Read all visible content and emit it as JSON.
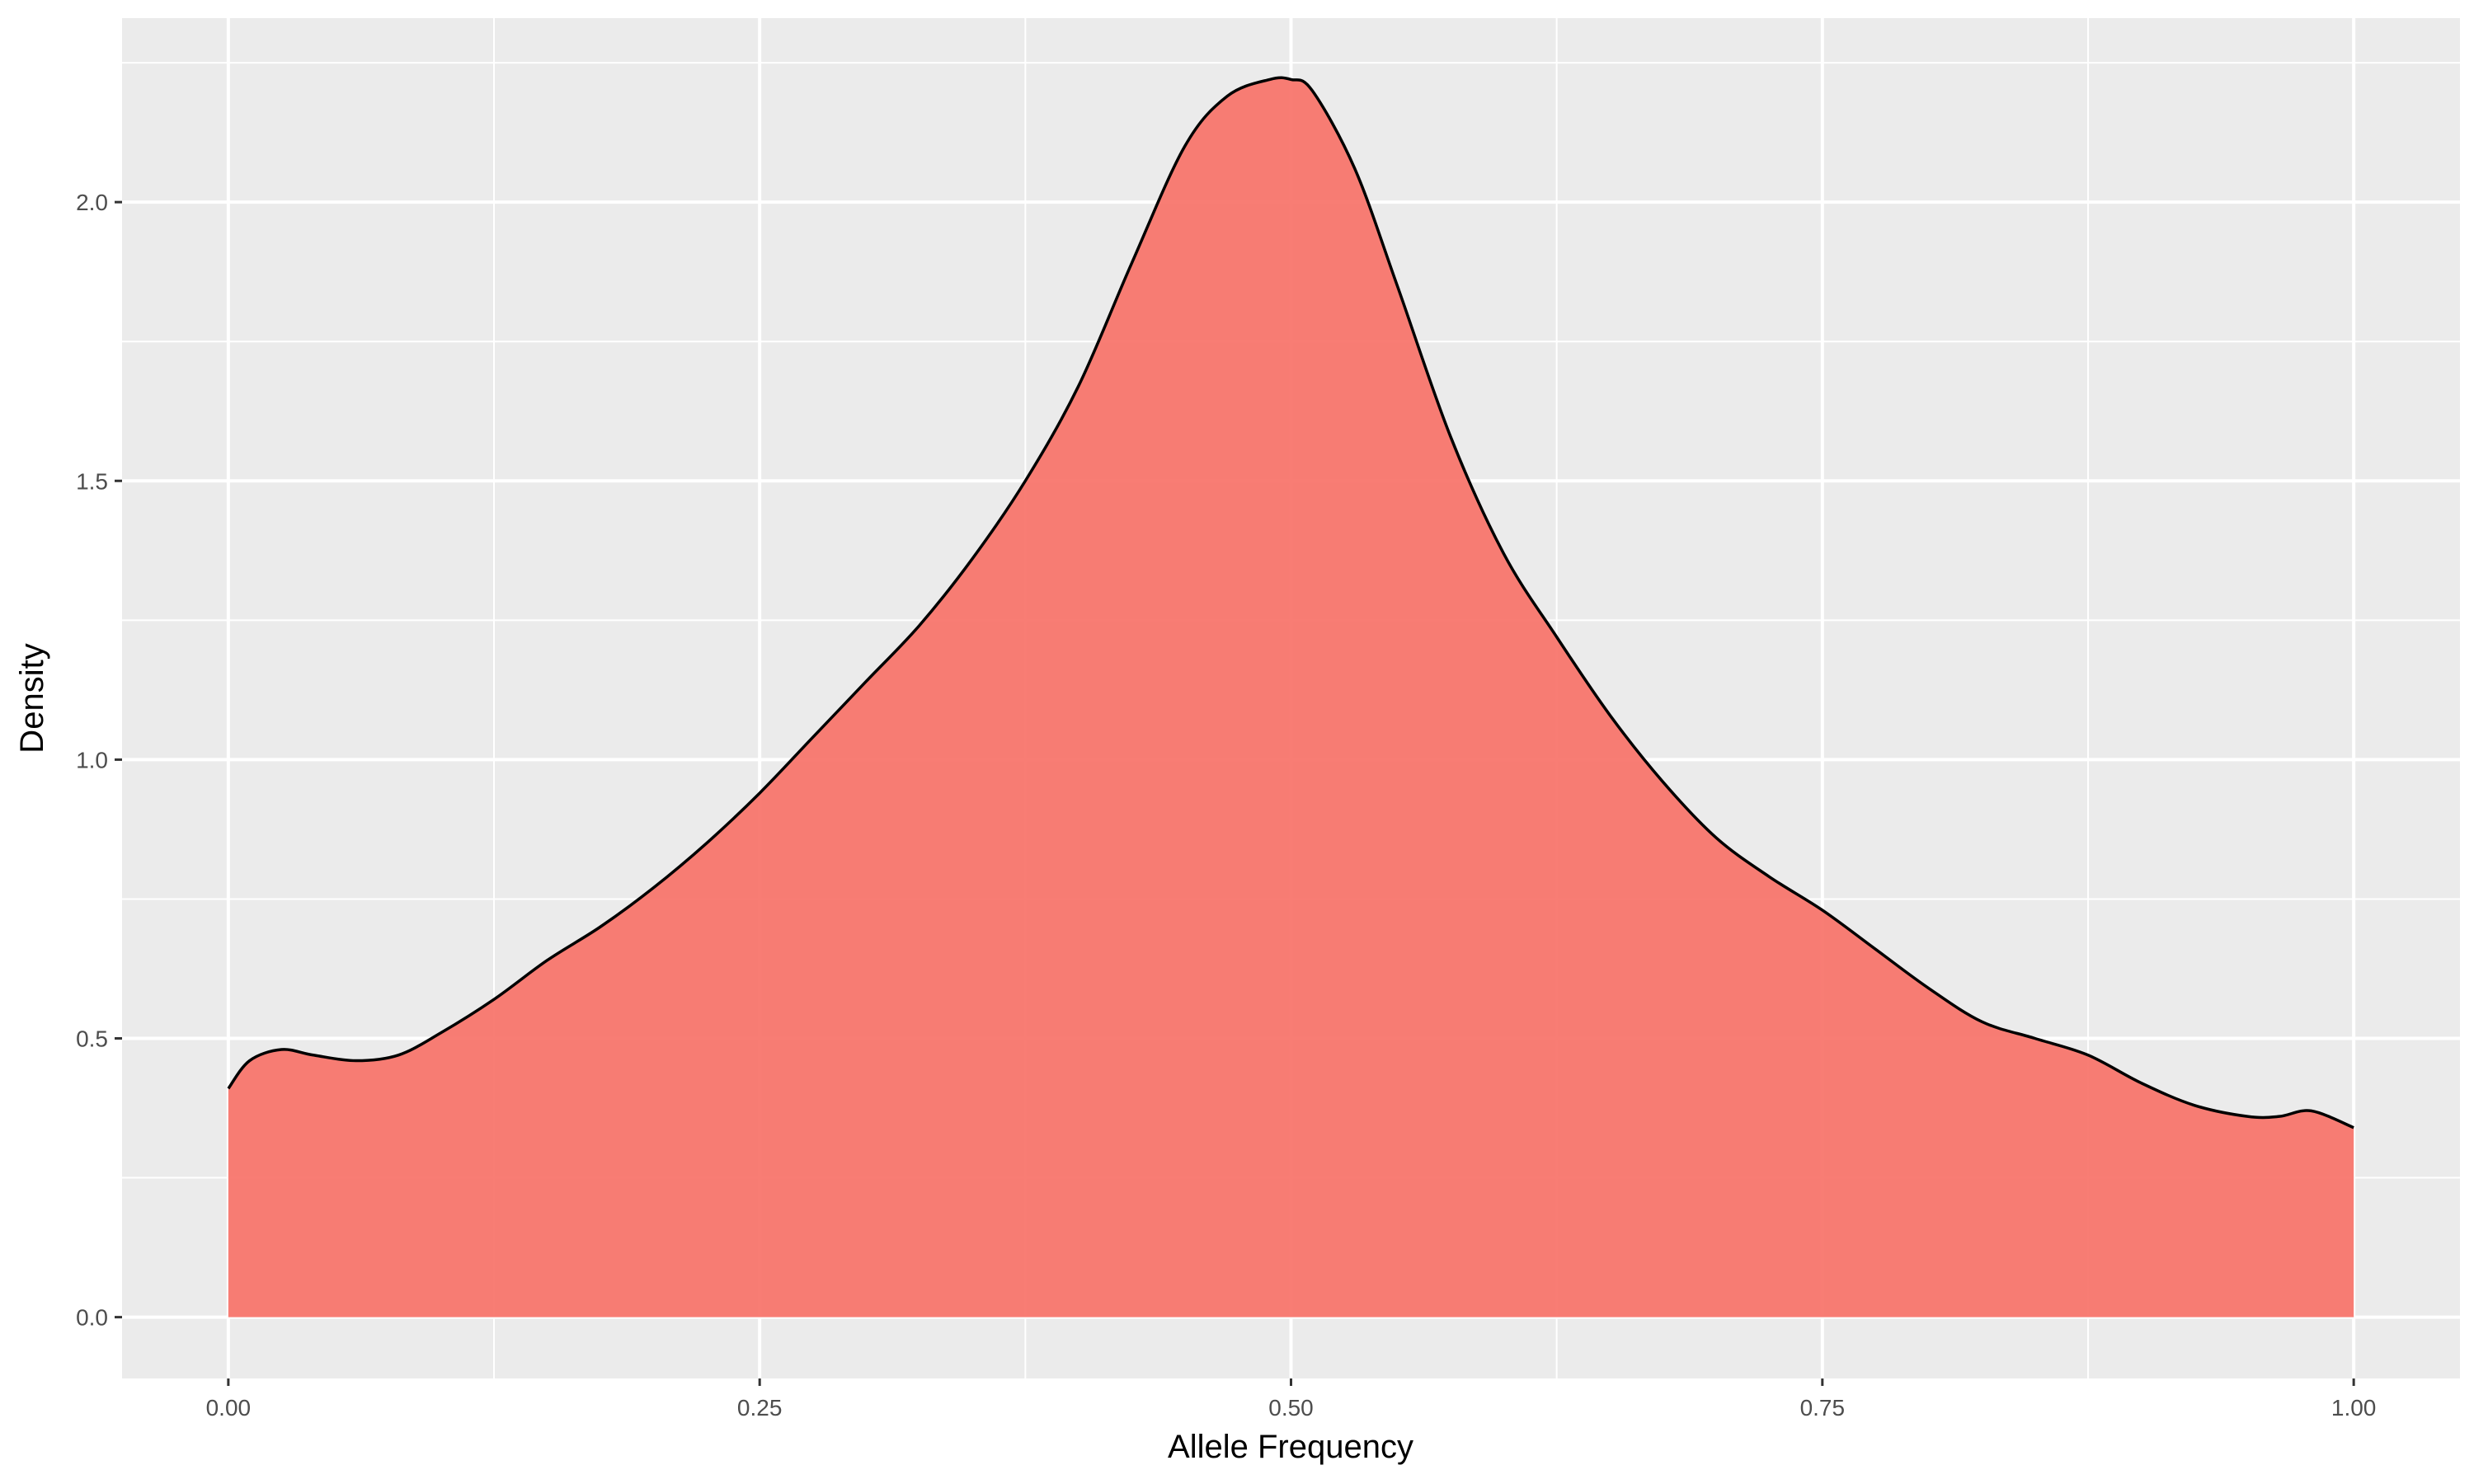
{
  "chart_data": {
    "type": "area",
    "title": "",
    "xlabel": "Allele Frequency",
    "ylabel": "Density",
    "xlim": [
      -0.05,
      1.05
    ],
    "ylim": [
      -0.11,
      2.33
    ],
    "x_ticks": [
      0.0,
      0.25,
      0.5,
      0.75,
      1.0
    ],
    "x_tick_labels": [
      "0.00",
      "0.25",
      "0.50",
      "0.75",
      "1.00"
    ],
    "y_ticks": [
      0.0,
      0.5,
      1.0,
      1.5,
      2.0
    ],
    "y_tick_labels": [
      "0.0",
      "0.5",
      "1.0",
      "1.5",
      "2.0"
    ],
    "grid": true,
    "legend": "none",
    "fill_color": "#F8766D",
    "line_color": "#000000",
    "panel_color": "#EBEBEB",
    "series": [
      {
        "x": [
          0.0,
          0.01,
          0.025,
          0.04,
          0.06,
          0.08,
          0.1,
          0.125,
          0.15,
          0.175,
          0.2,
          0.225,
          0.25,
          0.275,
          0.3,
          0.325,
          0.35,
          0.375,
          0.4,
          0.425,
          0.45,
          0.47,
          0.49,
          0.5,
          0.51,
          0.53,
          0.55,
          0.575,
          0.6,
          0.625,
          0.65,
          0.675,
          0.7,
          0.725,
          0.75,
          0.775,
          0.8,
          0.825,
          0.85,
          0.875,
          0.9,
          0.925,
          0.95,
          0.965,
          0.98,
          1.0
        ],
        "y": [
          0.41,
          0.46,
          0.48,
          0.47,
          0.46,
          0.47,
          0.51,
          0.57,
          0.64,
          0.7,
          0.77,
          0.85,
          0.94,
          1.04,
          1.14,
          1.24,
          1.36,
          1.5,
          1.67,
          1.89,
          2.1,
          2.19,
          2.22,
          2.22,
          2.2,
          2.06,
          1.85,
          1.58,
          1.37,
          1.22,
          1.08,
          0.96,
          0.86,
          0.79,
          0.73,
          0.66,
          0.59,
          0.53,
          0.5,
          0.47,
          0.42,
          0.38,
          0.36,
          0.36,
          0.37,
          0.34
        ]
      }
    ]
  }
}
